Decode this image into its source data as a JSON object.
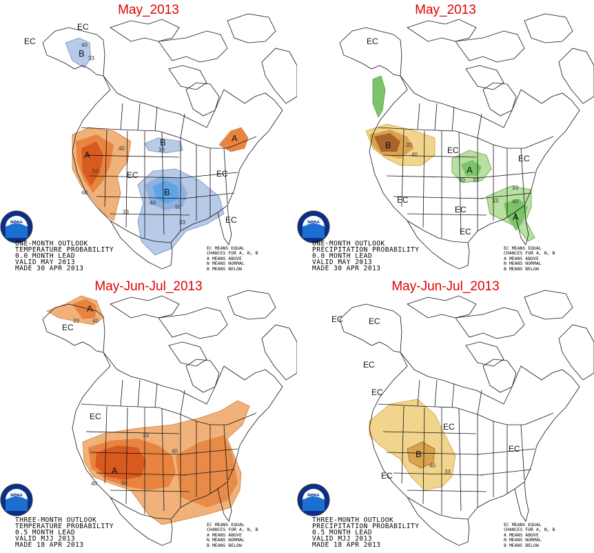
{
  "colors": {
    "above_light": "#f0b27a",
    "above_mid": "#e8843f",
    "above_dark": "#d95a1f",
    "below_light": "#b7cbe8",
    "below_mid": "#8fb0de",
    "below_dark": "#5ea5e6",
    "wet_light": "#b8e0a0",
    "wet_mid": "#7cc46a",
    "dry_light": "#f2d58c",
    "dry_mid": "#d9a24f",
    "dry_dark": "#a8642b",
    "title": "#e00000"
  },
  "legend": [
    "EC MEANS EQUAL",
    "CHANCES FOR A, N, B",
    "A MEANS ABOVE",
    "N MEANS NORMAL",
    "B MEANS BELOW"
  ],
  "panels": [
    {
      "title": "May_2013",
      "caption": [
        "ONE-MONTH OUTLOOK",
        "TEMPERATURE PROBABILITY",
        "0.0 MONTH LEAD",
        "VALID MAY 2013",
        "MADE 30 APR 2013"
      ],
      "labels": {
        "ec1": "EC",
        "ec2": "EC",
        "ec3": "EC",
        "ec4": "EC",
        "ec5": "EC",
        "a1": "A",
        "a2": "A",
        "b1": "B",
        "b2": "B",
        "b3": "B"
      },
      "nums": {
        "n1": "40",
        "n2": "33",
        "n3": "40",
        "n4": "50",
        "n5": "40",
        "n6": "33",
        "n7": "40",
        "n8": "50",
        "n9": "33",
        "n10": "33"
      }
    },
    {
      "title": "May_2013",
      "caption": [
        "ONE-MONTH OUTLOOK",
        "PRECIPITATION PROBABILITY",
        "0.0 MONTH LEAD",
        "VALID MAY 2013",
        "MADE 30 APR 2013"
      ],
      "labels": {
        "ec1": "EC",
        "ec2": "EC",
        "ec3": "EC",
        "ec4": "EC",
        "ec5": "EC",
        "ec6": "EC",
        "b1": "B",
        "a1": "A",
        "a2": "A"
      },
      "nums": {
        "n1": "40",
        "n2": "33",
        "n3": "40",
        "n4": "33",
        "n5": "33",
        "n6": "40",
        "n7": "33"
      }
    },
    {
      "title": "May-Jun-Jul_2013",
      "caption": [
        "THREE-MONTH OUTLOOK",
        "TEMPERATURE PROBABILITY",
        "0.5 MONTH LEAD",
        "VALID MJJ 2013",
        "MADE 18 APR 2013"
      ],
      "labels": {
        "ec1": "EC",
        "ec2": "EC",
        "a1": "A",
        "a2": "A"
      },
      "nums": {
        "n1": "33",
        "n2": "40",
        "n3": "33",
        "n4": "40",
        "n5": "40",
        "n6": "50"
      }
    },
    {
      "title": "May-Jun-Jul_2013",
      "caption": [
        "THREE-MONTH OUTLOOK",
        "PRECIPITATION PROBABILITY",
        "0.5 MONTH LEAD",
        "VALID MJJ 2013",
        "MADE 18 APR 2013"
      ],
      "labels": {
        "ec1": "EC",
        "ec2": "EC",
        "ec3": "EC",
        "ec4": "EC",
        "ec5": "EC",
        "ec6": "EC",
        "ec7": "EC",
        "b1": "B"
      },
      "nums": {
        "n1": "40",
        "n2": "33"
      }
    }
  ]
}
